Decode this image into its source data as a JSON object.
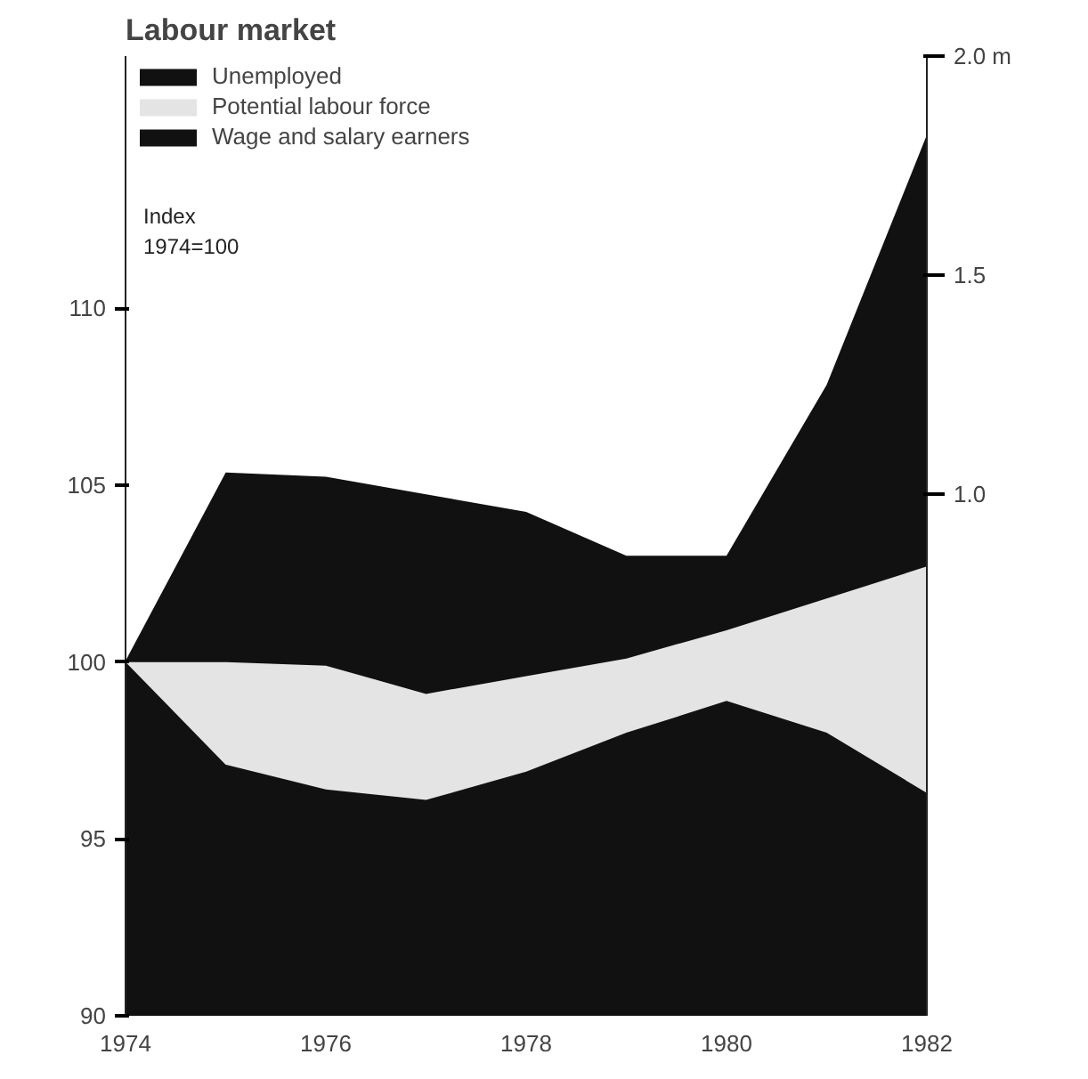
{
  "chart_data": {
    "type": "area",
    "title": "Labour market",
    "ylabel": "Index\n1974=100",
    "x": [
      1974,
      1975,
      1976,
      1977,
      1978,
      1979,
      1980,
      1981,
      1982
    ],
    "series": [
      {
        "name": "Unemployed",
        "color": "#111111",
        "axis": "y2",
        "values": [
          0.62,
          1.05,
          1.04,
          1.0,
          0.96,
          0.86,
          0.86,
          1.25,
          1.82
        ]
      },
      {
        "name": "Potential labour force",
        "color": "#e4e4e4",
        "values": [
          100,
          100,
          99.9,
          99.1,
          99.6,
          100.1,
          100.9,
          101.8,
          102.7
        ]
      },
      {
        "name": "Wage and salary earners",
        "color": "#111111",
        "values": [
          100,
          97.1,
          96.4,
          96.1,
          96.9,
          98,
          98.9,
          98,
          96.3
        ]
      }
    ],
    "xlim": [
      1974,
      1982
    ],
    "xticks": [
      1974,
      1976,
      1978,
      1980,
      1982
    ],
    "ylim": [
      90,
      117.13
    ],
    "yticks": [
      90,
      95,
      100,
      105,
      110
    ],
    "y2lim": [
      -0.19,
      2.0
    ],
    "y2ticks": [
      {
        "value": 1.0,
        "label": "1.0"
      },
      1.5,
      {
        "value": 2.0,
        "label": "2.0 m"
      }
    ],
    "grid": false,
    "legend": "top left"
  }
}
